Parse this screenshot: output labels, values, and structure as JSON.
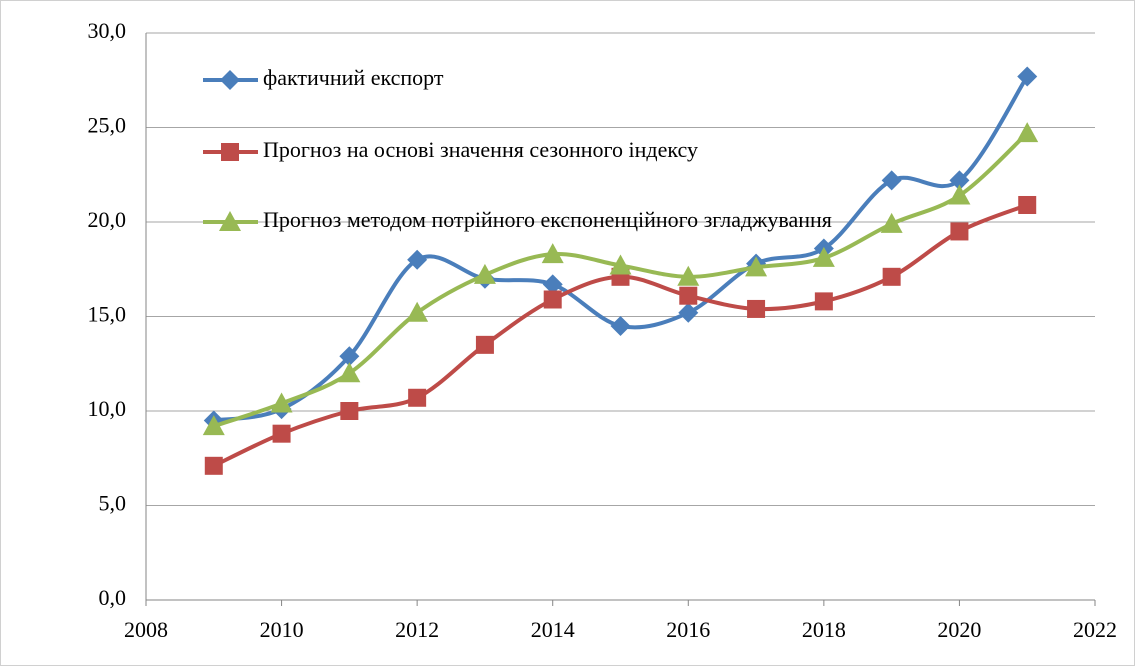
{
  "chart_data": {
    "type": "line",
    "smooth": true,
    "grid": true,
    "x": [
      2009,
      2010,
      2011,
      2012,
      2013,
      2014,
      2015,
      2016,
      2017,
      2018,
      2019,
      2020,
      2021
    ],
    "xlim": [
      2008,
      2022
    ],
    "xticks": [
      2008,
      2010,
      2012,
      2014,
      2016,
      2018,
      2020,
      2022
    ],
    "ylim": [
      0,
      30
    ],
    "yticks": [
      {
        "value": 0,
        "label": "0,0"
      },
      {
        "value": 5,
        "label": "5,0"
      },
      {
        "value": 10,
        "label": "10,0"
      },
      {
        "value": 15,
        "label": "15,0"
      },
      {
        "value": 20,
        "label": "20,0"
      },
      {
        "value": 25,
        "label": "25,0"
      },
      {
        "value": 30,
        "label": "30,0"
      }
    ],
    "legend": "upper left",
    "series": [
      {
        "name": "фактичний експорт",
        "color": "#4a7ebb",
        "marker": "diamond",
        "values": [
          9.5,
          10.1,
          12.9,
          18.0,
          17.0,
          16.7,
          14.5,
          15.2,
          17.8,
          18.6,
          22.2,
          22.2,
          27.7
        ]
      },
      {
        "name": "Прогноз на основі значення сезонного індексу",
        "color": "#be4b48",
        "marker": "square",
        "values": [
          7.1,
          8.8,
          10.0,
          10.7,
          13.5,
          15.9,
          17.1,
          16.1,
          15.4,
          15.8,
          17.1,
          19.5,
          20.9
        ]
      },
      {
        "name": "Прогноз методом потрійного експоненційного згладжування",
        "color": "#98b954",
        "marker": "triangle",
        "values": [
          9.2,
          10.4,
          12.0,
          15.2,
          17.2,
          18.3,
          17.7,
          17.1,
          17.6,
          18.1,
          19.9,
          21.4,
          24.7
        ]
      }
    ]
  }
}
